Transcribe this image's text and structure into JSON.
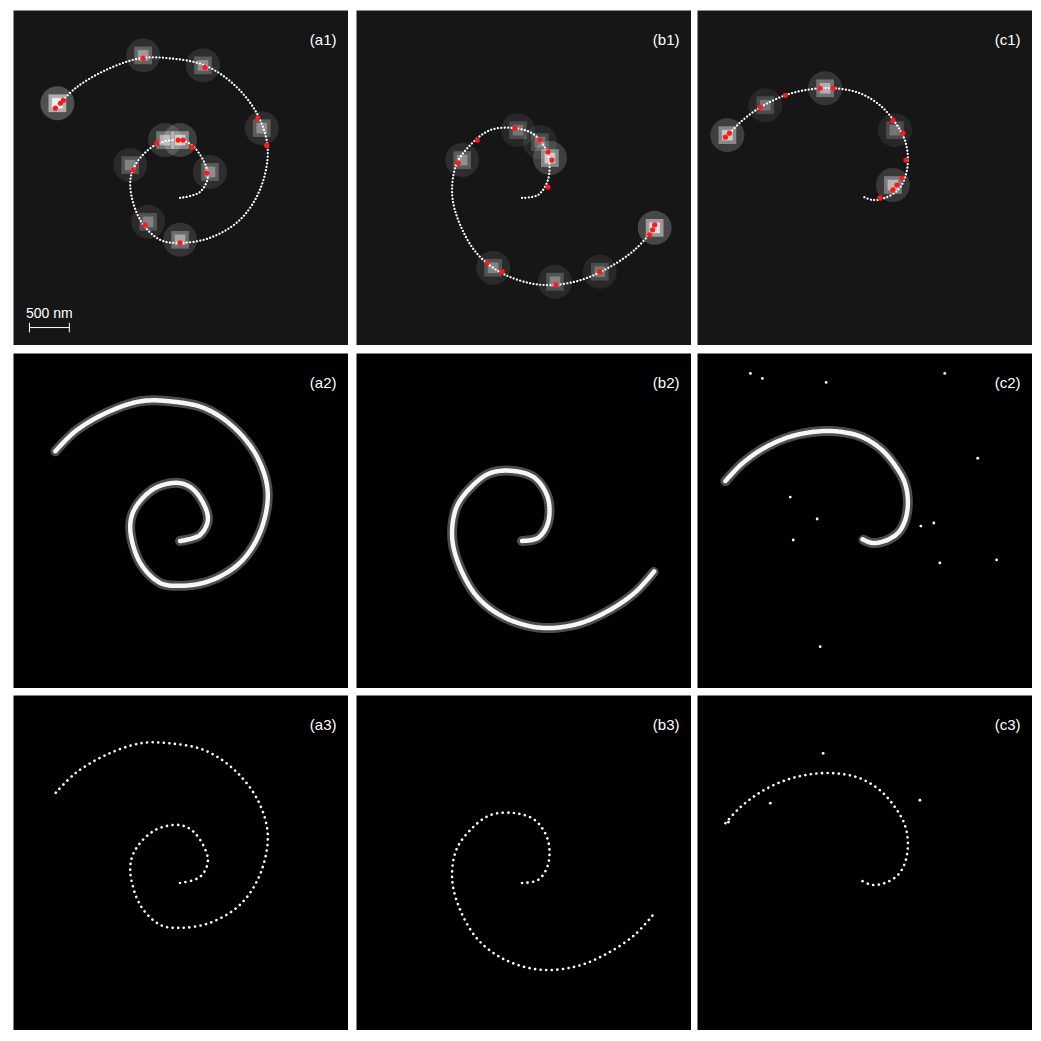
{
  "chart_data": [
    {
      "type": "scatter",
      "panels": [
        "(a1)",
        "(a2)",
        "(a3)"
      ],
      "xlim": [
        0,
        4200
      ],
      "ylim": [
        0,
        4200
      ],
      "tick_labels": false,
      "scale_bar": {
        "label": "500 nm",
        "length": 500,
        "panel": "(a1)"
      },
      "series": [
        {
          "type": "spot",
          "color": "#ffffff",
          "panels": [
            "(a1)"
          ],
          "points": [
            [
              550,
              1163
            ],
            [
              1625,
              563
            ],
            [
              2375,
              688
            ],
            [
              3113,
              1475
            ],
            [
              2088,
              1625
            ],
            [
              1900,
              1625
            ],
            [
              1463,
              1938
            ],
            [
              2463,
              2025
            ],
            [
              1688,
              2650
            ],
            [
              2088,
              2875
            ]
          ],
          "intensity": [
            1.0,
            0.45,
            0.4,
            0.4,
            0.7,
            0.55,
            0.35,
            0.4,
            0.35,
            0.5
          ]
        },
        {
          "type": "line",
          "color": "#ffffff",
          "panels": [
            "(a1)",
            "(a2)",
            "(a3)"
          ],
          "points": [
            [
              2088,
              2350
            ],
            [
              2338,
              2275
            ],
            [
              2438,
              2063
            ],
            [
              2275,
              1725
            ],
            [
              2088,
              1625
            ],
            [
              1775,
              1688
            ],
            [
              1525,
              1938
            ],
            [
              1463,
              2188
            ],
            [
              1588,
              2625
            ],
            [
              1838,
              2875
            ],
            [
              2088,
              2913
            ],
            [
              2463,
              2850
            ],
            [
              2838,
              2625
            ],
            [
              3088,
              2250
            ],
            [
              3188,
              1750
            ],
            [
              3063,
              1313
            ],
            [
              2775,
              938
            ],
            [
              2400,
              688
            ],
            [
              1963,
              600
            ],
            [
              1588,
              600
            ],
            [
              1150,
              750
            ],
            [
              775,
              975
            ],
            [
              525,
              1225
            ]
          ]
        },
        {
          "type": "scatter",
          "color": "#ff1a1a",
          "panels": [
            "(a1)"
          ],
          "points": [
            [
              525,
              1225
            ],
            [
              588,
              1163
            ],
            [
              625,
              1125
            ],
            [
              1625,
              600
            ],
            [
              2400,
              713
            ],
            [
              3063,
              1350
            ],
            [
              3175,
              1688
            ],
            [
              2063,
              1625
            ],
            [
              2125,
              1625
            ],
            [
              1800,
              1663
            ],
            [
              1500,
              2000
            ],
            [
              2238,
              1713
            ],
            [
              2425,
              2038
            ],
            [
              1650,
              2688
            ],
            [
              2088,
              2913
            ]
          ]
        }
      ]
    },
    {
      "type": "scatter",
      "panels": [
        "(b1)",
        "(b2)",
        "(b3)"
      ],
      "xlim": [
        0,
        4200
      ],
      "ylim": [
        0,
        4200
      ],
      "tick_labels": false,
      "series": [
        {
          "type": "spot",
          "color": "#ffffff",
          "panels": [
            "(b1)"
          ],
          "points": [
            [
              3738,
              2725
            ],
            [
              2425,
              1850
            ],
            [
              1325,
              1875
            ],
            [
              2025,
              1500
            ],
            [
              1713,
              3225
            ],
            [
              2488,
              3400
            ],
            [
              3050,
              3275
            ],
            [
              2300,
              1650
            ]
          ],
          "intensity": [
            0.85,
            0.7,
            0.4,
            0.3,
            0.35,
            0.35,
            0.3,
            0.3
          ]
        },
        {
          "type": "line",
          "color": "#ffffff",
          "panels": [
            "(b1)",
            "(b2)",
            "(b3)"
          ],
          "points": [
            [
              2075,
              2350
            ],
            [
              2275,
              2313
            ],
            [
              2400,
              2125
            ],
            [
              2400,
              1813
            ],
            [
              2238,
              1563
            ],
            [
              1988,
              1475
            ],
            [
              1675,
              1500
            ],
            [
              1425,
              1688
            ],
            [
              1250,
              1938
            ],
            [
              1200,
              2313
            ],
            [
              1300,
              2688
            ],
            [
              1525,
              3063
            ],
            [
              1863,
              3313
            ],
            [
              2300,
              3438
            ],
            [
              2738,
              3400
            ],
            [
              3113,
              3250
            ],
            [
              3488,
              3000
            ],
            [
              3738,
              2725
            ]
          ]
        },
        {
          "type": "scatter",
          "color": "#ff1a1a",
          "panels": [
            "(b1)"
          ],
          "points": [
            [
              1275,
              1913
            ],
            [
              1513,
              1625
            ],
            [
              1988,
              1475
            ],
            [
              2300,
              1625
            ],
            [
              2400,
              1775
            ],
            [
              2450,
              1875
            ],
            [
              2400,
              2213
            ],
            [
              1638,
              3163
            ],
            [
              1825,
              3275
            ],
            [
              2500,
              3438
            ],
            [
              3050,
              3275
            ],
            [
              3675,
              2813
            ],
            [
              3713,
              2750
            ],
            [
              3738,
              2688
            ]
          ]
        }
      ]
    },
    {
      "type": "scatter",
      "panels": [
        "(c1)",
        "(c2)",
        "(c3)"
      ],
      "xlim": [
        0,
        4200
      ],
      "ylim": [
        0,
        4200
      ],
      "tick_labels": false,
      "series": [
        {
          "type": "spot",
          "color": "#ffffff",
          "panels": [
            "(c1)"
          ],
          "points": [
            [
              375,
              1563
            ],
            [
              1600,
              975
            ],
            [
              2450,
              2188
            ],
            [
              850,
              1188
            ],
            [
              2475,
              1500
            ]
          ],
          "intensity": [
            0.7,
            0.55,
            0.6,
            0.3,
            0.3
          ]
        },
        {
          "type": "line",
          "color": "#ffffff",
          "panels": [
            "(c1)",
            "(c2)",
            "(c3)"
          ],
          "points": [
            [
              350,
              1600
            ],
            [
              538,
              1400
            ],
            [
              788,
              1213
            ],
            [
              1100,
              1063
            ],
            [
              1413,
              988
            ],
            [
              1725,
              975
            ],
            [
              2038,
              1038
            ],
            [
              2288,
              1188
            ],
            [
              2475,
              1400
            ],
            [
              2600,
              1625
            ],
            [
              2638,
              1875
            ],
            [
              2600,
              2100
            ],
            [
              2513,
              2250
            ],
            [
              2350,
              2350
            ],
            [
              2188,
              2375
            ],
            [
              2063,
              2325
            ]
          ]
        },
        {
          "type": "scatter",
          "color": "#ff1a1a",
          "panels": [
            "(c1)"
          ],
          "points": [
            [
              350,
              1588
            ],
            [
              400,
              1538
            ],
            [
              788,
              1213
            ],
            [
              1100,
              1063
            ],
            [
              1538,
              975
            ],
            [
              1700,
              975
            ],
            [
              2450,
              1375
            ],
            [
              2575,
              1538
            ],
            [
              2613,
              1875
            ],
            [
              2563,
              2100
            ],
            [
              2500,
              2188
            ],
            [
              2450,
              2250
            ],
            [
              2288,
              2350
            ]
          ]
        },
        {
          "type": "scatter",
          "color": "#ffffff",
          "panels": [
            "(c2)"
          ],
          "points": [
            [
              663,
              250
            ],
            [
              813,
              313
            ],
            [
              1613,
              363
            ],
            [
              3100,
              250
            ],
            [
              1538,
              3675
            ],
            [
              3750,
              2588
            ],
            [
              3513,
              1313
            ],
            [
              3038,
              2625
            ],
            [
              1200,
              2338
            ],
            [
              1500,
              2075
            ],
            [
              1163,
              1800
            ],
            [
              2963,
              2125
            ],
            [
              2800,
              2163
            ]
          ]
        },
        {
          "type": "scatter",
          "color": "#ffffff",
          "panels": [
            "(c3)"
          ],
          "points": [
            [
              1575,
              725
            ],
            [
              913,
              1350
            ],
            [
              2788,
              1313
            ],
            [
              388,
              1588
            ]
          ]
        }
      ]
    }
  ]
}
